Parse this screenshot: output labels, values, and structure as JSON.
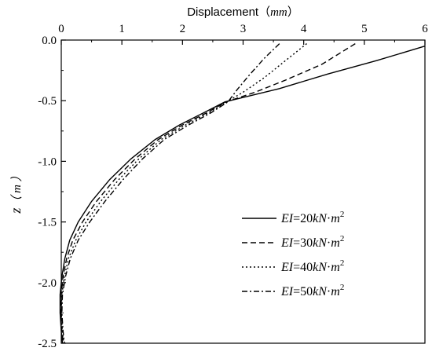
{
  "chart_data": {
    "type": "line",
    "title": "",
    "xlabel": "Displacement（mm）",
    "xlabel_prefix": "Displacement（",
    "xlabel_unit": "mm",
    "xlabel_suffix": "）",
    "ylabel_var": "z",
    "ylabel_unit": "（ m ）",
    "xlim": [
      0,
      6
    ],
    "ylim": [
      -2.5,
      0.0
    ],
    "x_axis_position": "top",
    "x_ticks": [
      0,
      1,
      2,
      3,
      4,
      5,
      6
    ],
    "x_tick_labels": [
      "0",
      "1",
      "2",
      "3",
      "4",
      "5",
      "6"
    ],
    "y_ticks": [
      0.0,
      -0.5,
      -1.0,
      -1.5,
      -2.0,
      -2.5
    ],
    "y_tick_labels": [
      "0.0",
      "-0.5",
      "-1.0",
      "-1.5",
      "-2.0",
      "-2.5"
    ],
    "grid": false,
    "legend_position": "bottom-right",
    "series": [
      {
        "name": "EI=20kN·m2",
        "label_parts": [
          "EI",
          "=20",
          "kN",
          "·",
          "m",
          "2"
        ],
        "dash": "solid",
        "points": [
          [
            6.0,
            -0.05
          ],
          [
            5.2,
            -0.17
          ],
          [
            4.4,
            -0.28
          ],
          [
            3.6,
            -0.4
          ],
          [
            2.7,
            -0.51
          ],
          [
            2.35,
            -0.6
          ],
          [
            1.95,
            -0.7
          ],
          [
            1.55,
            -0.82
          ],
          [
            1.15,
            -0.98
          ],
          [
            0.8,
            -1.15
          ],
          [
            0.5,
            -1.33
          ],
          [
            0.28,
            -1.5
          ],
          [
            0.14,
            -1.65
          ],
          [
            0.06,
            -1.8
          ],
          [
            0.01,
            -1.95
          ],
          [
            -0.02,
            -2.1
          ],
          [
            -0.02,
            -2.25
          ],
          [
            0.0,
            -2.4
          ],
          [
            0.02,
            -2.5
          ]
        ]
      },
      {
        "name": "EI=30kN·m2",
        "label_parts": [
          "EI",
          "=30",
          "kN",
          "·",
          "m",
          "2"
        ],
        "dash": "dashed",
        "points": [
          [
            4.85,
            -0.03
          ],
          [
            4.3,
            -0.2
          ],
          [
            3.7,
            -0.33
          ],
          [
            3.2,
            -0.43
          ],
          [
            2.72,
            -0.51
          ],
          [
            2.4,
            -0.6
          ],
          [
            2.0,
            -0.7
          ],
          [
            1.6,
            -0.82
          ],
          [
            1.22,
            -0.98
          ],
          [
            0.88,
            -1.15
          ],
          [
            0.58,
            -1.33
          ],
          [
            0.35,
            -1.5
          ],
          [
            0.19,
            -1.65
          ],
          [
            0.09,
            -1.8
          ],
          [
            0.03,
            -1.95
          ],
          [
            0.0,
            -2.1
          ],
          [
            -0.01,
            -2.25
          ],
          [
            0.01,
            -2.4
          ],
          [
            0.03,
            -2.5
          ]
        ]
      },
      {
        "name": "EI=40kN·m2",
        "label_parts": [
          "EI",
          "=40",
          "kN",
          "·",
          "m",
          "2"
        ],
        "dash": "dotted",
        "points": [
          [
            4.05,
            -0.03
          ],
          [
            3.7,
            -0.17
          ],
          [
            3.35,
            -0.31
          ],
          [
            3.0,
            -0.43
          ],
          [
            2.73,
            -0.51
          ],
          [
            2.43,
            -0.6
          ],
          [
            2.05,
            -0.7
          ],
          [
            1.65,
            -0.82
          ],
          [
            1.28,
            -0.98
          ],
          [
            0.95,
            -1.15
          ],
          [
            0.65,
            -1.33
          ],
          [
            0.41,
            -1.5
          ],
          [
            0.24,
            -1.65
          ],
          [
            0.12,
            -1.8
          ],
          [
            0.05,
            -1.95
          ],
          [
            0.01,
            -2.1
          ],
          [
            0.0,
            -2.25
          ],
          [
            0.02,
            -2.4
          ],
          [
            0.04,
            -2.5
          ]
        ]
      },
      {
        "name": "EI=50kN·m2",
        "label_parts": [
          "EI",
          "=50",
          "kN",
          "·",
          "m",
          "2"
        ],
        "dash": "dash-dot",
        "points": [
          [
            3.6,
            -0.03
          ],
          [
            3.35,
            -0.15
          ],
          [
            3.1,
            -0.29
          ],
          [
            2.9,
            -0.41
          ],
          [
            2.75,
            -0.51
          ],
          [
            2.47,
            -0.6
          ],
          [
            2.1,
            -0.7
          ],
          [
            1.7,
            -0.82
          ],
          [
            1.34,
            -0.98
          ],
          [
            1.02,
            -1.15
          ],
          [
            0.72,
            -1.33
          ],
          [
            0.47,
            -1.5
          ],
          [
            0.28,
            -1.65
          ],
          [
            0.15,
            -1.8
          ],
          [
            0.07,
            -1.95
          ],
          [
            0.02,
            -2.1
          ],
          [
            0.01,
            -2.25
          ],
          [
            0.03,
            -2.4
          ],
          [
            0.05,
            -2.5
          ]
        ]
      }
    ]
  }
}
